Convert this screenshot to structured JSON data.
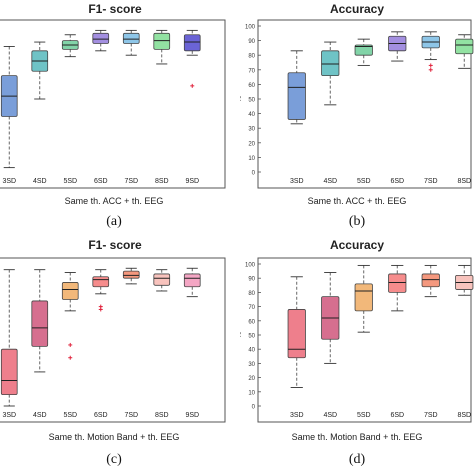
{
  "panels": [
    {
      "id": "a",
      "title": "F1- score",
      "xlabel": "Same th. ACC + th. EEG",
      "caption": "(a)",
      "categories": [
        "3SD",
        "4SD",
        "5SD",
        "6SD",
        "7SD",
        "8SD",
        "9SD"
      ],
      "ylim": [
        0,
        100
      ],
      "show_y_ticks": false,
      "boxes": [
        {
          "min": 3,
          "q1": 38,
          "med": 52,
          "q3": 66,
          "max": 86,
          "color": "#7a9ed9",
          "outliers": []
        },
        {
          "min": 50,
          "q1": 69,
          "med": 76,
          "q3": 83,
          "max": 89,
          "color": "#6fc3c6",
          "outliers": []
        },
        {
          "min": 79,
          "q1": 84,
          "med": 87,
          "q3": 90,
          "max": 94,
          "color": "#82d4a8",
          "outliers": []
        },
        {
          "min": 83,
          "q1": 88,
          "med": 91,
          "q3": 95,
          "max": 97,
          "color": "#a38fe0",
          "outliers": []
        },
        {
          "min": 80,
          "q1": 88,
          "med": 91,
          "q3": 95,
          "max": 97,
          "color": "#8ec6e8",
          "outliers": []
        },
        {
          "min": 74,
          "q1": 84,
          "med": 90,
          "q3": 95,
          "max": 97,
          "color": "#92e2a2",
          "outliers": []
        },
        {
          "min": 80,
          "q1": 83,
          "med": 89,
          "q3": 94,
          "max": 97,
          "color": "#6b64d6",
          "outliers": [
            59
          ]
        }
      ]
    },
    {
      "id": "b",
      "title": "Accuracy",
      "xlabel": "Same th. ACC + th. EEG",
      "caption": "(b)",
      "ylabel": "%",
      "categories": [
        "3SD",
        "4SD",
        "5SD",
        "6SD",
        "7SD",
        "8SD"
      ],
      "ylim": [
        0,
        100
      ],
      "yticks": [
        0,
        10,
        20,
        30,
        40,
        50,
        60,
        70,
        80,
        90,
        100
      ],
      "show_y_ticks": true,
      "boxes": [
        {
          "min": 33,
          "q1": 36,
          "med": 58,
          "q3": 68,
          "max": 83,
          "color": "#7a9ed9",
          "outliers": []
        },
        {
          "min": 46,
          "q1": 66,
          "med": 74,
          "q3": 83,
          "max": 89,
          "color": "#6fc3c6",
          "outliers": []
        },
        {
          "min": 73,
          "q1": 80,
          "med": 86,
          "q3": 87,
          "max": 91,
          "color": "#82d4a8",
          "outliers": []
        },
        {
          "min": 76,
          "q1": 83,
          "med": 88,
          "q3": 93,
          "max": 96,
          "color": "#a38fe0",
          "outliers": []
        },
        {
          "min": 77,
          "q1": 85,
          "med": 89,
          "q3": 93,
          "max": 96,
          "color": "#8ec6e8",
          "outliers": [
            70,
            73
          ]
        },
        {
          "min": 71,
          "q1": 81,
          "med": 87,
          "q3": 91,
          "max": 94,
          "color": "#92e2a2",
          "outliers": []
        }
      ]
    },
    {
      "id": "c",
      "title": "F1- score",
      "xlabel": "Same th. Motion Band + th. EEG",
      "caption": "(c)",
      "categories": [
        "3SD",
        "4SD",
        "5SD",
        "6SD",
        "7SD",
        "8SD",
        "9SD"
      ],
      "ylim": [
        0,
        100
      ],
      "show_y_ticks": false,
      "boxes": [
        {
          "min": 0,
          "q1": 8,
          "med": 18,
          "q3": 40,
          "max": 96,
          "color": "#ee7f8c",
          "outliers": []
        },
        {
          "min": 24,
          "q1": 42,
          "med": 55,
          "q3": 74,
          "max": 96,
          "color": "#d66f8f",
          "outliers": []
        },
        {
          "min": 67,
          "q1": 75,
          "med": 82,
          "q3": 87,
          "max": 94,
          "color": "#f2b87a",
          "outliers": [
            43,
            34
          ]
        },
        {
          "min": 79,
          "q1": 84,
          "med": 89,
          "q3": 91,
          "max": 96,
          "color": "#f68c8c",
          "outliers": [
            70,
            68
          ]
        },
        {
          "min": 86,
          "q1": 90,
          "med": 92,
          "q3": 95,
          "max": 97,
          "color": "#f4987e",
          "outliers": []
        },
        {
          "min": 81,
          "q1": 85,
          "med": 90,
          "q3": 93,
          "max": 96,
          "color": "#f8c3bd",
          "outliers": []
        },
        {
          "min": 77,
          "q1": 84,
          "med": 90,
          "q3": 93,
          "max": 97,
          "color": "#f4a6c4",
          "outliers": []
        }
      ]
    },
    {
      "id": "d",
      "title": "Accuracy",
      "xlabel": "Same th. Motion Band + th. EEG",
      "caption": "(d)",
      "ylabel": "%",
      "categories": [
        "3SD",
        "4SD",
        "5SD",
        "6SD",
        "7SD",
        "8SD"
      ],
      "ylim": [
        0,
        100
      ],
      "yticks": [
        0,
        10,
        20,
        30,
        40,
        50,
        60,
        70,
        80,
        90,
        100
      ],
      "show_y_ticks": true,
      "boxes": [
        {
          "min": 13,
          "q1": 34,
          "med": 40,
          "q3": 68,
          "max": 91,
          "color": "#ee7f8c",
          "outliers": []
        },
        {
          "min": 30,
          "q1": 47,
          "med": 62,
          "q3": 77,
          "max": 94,
          "color": "#d66f8f",
          "outliers": []
        },
        {
          "min": 52,
          "q1": 67,
          "med": 81,
          "q3": 86,
          "max": 99,
          "color": "#f2b87a",
          "outliers": []
        },
        {
          "min": 67,
          "q1": 80,
          "med": 87,
          "q3": 93,
          "max": 99,
          "color": "#f68c8c",
          "outliers": []
        },
        {
          "min": 77,
          "q1": 84,
          "med": 89,
          "q3": 93,
          "max": 99,
          "color": "#f4987e",
          "outliers": []
        },
        {
          "min": 78,
          "q1": 82,
          "med": 87,
          "q3": 92,
          "max": 99,
          "color": "#f8c3bd",
          "outliers": []
        }
      ]
    }
  ]
}
